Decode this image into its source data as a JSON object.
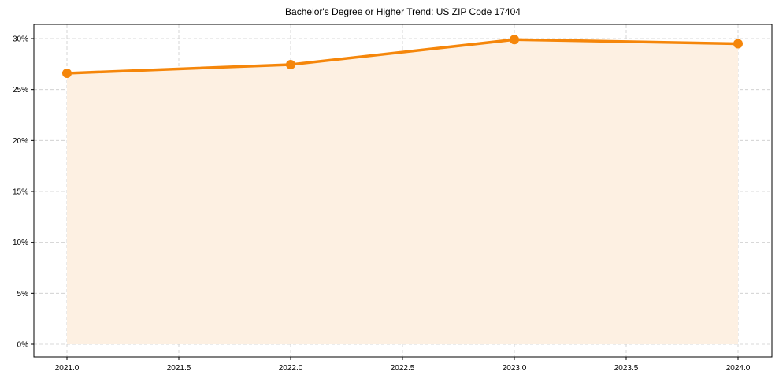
{
  "chart_data": {
    "type": "line",
    "title": "Bachelor's Degree or Higher Trend: US ZIP Code 17404",
    "xlabel": "",
    "ylabel": "",
    "x": [
      2021,
      2022,
      2023,
      2024
    ],
    "series": [
      {
        "name": "Bachelor's Degree or Higher",
        "values": [
          26.6,
          27.45,
          29.9,
          29.5
        ],
        "unit": "%"
      }
    ],
    "xlim": [
      2020.85,
      2024.15
    ],
    "ylim": [
      -1.5,
      31.5
    ],
    "x_ticks": [
      "2021.0",
      "2021.5",
      "2022.0",
      "2022.5",
      "2023.0",
      "2023.5",
      "2024.0"
    ],
    "y_ticks": [
      "0%",
      "5%",
      "10%",
      "15%",
      "20%",
      "25%",
      "30%"
    ],
    "grid": true,
    "area_fill": true,
    "legend": null
  },
  "colors": {
    "line": "#F5860A",
    "fill": "#FDF0E2",
    "grid": "#CCCCCC",
    "axis": "#000000"
  }
}
